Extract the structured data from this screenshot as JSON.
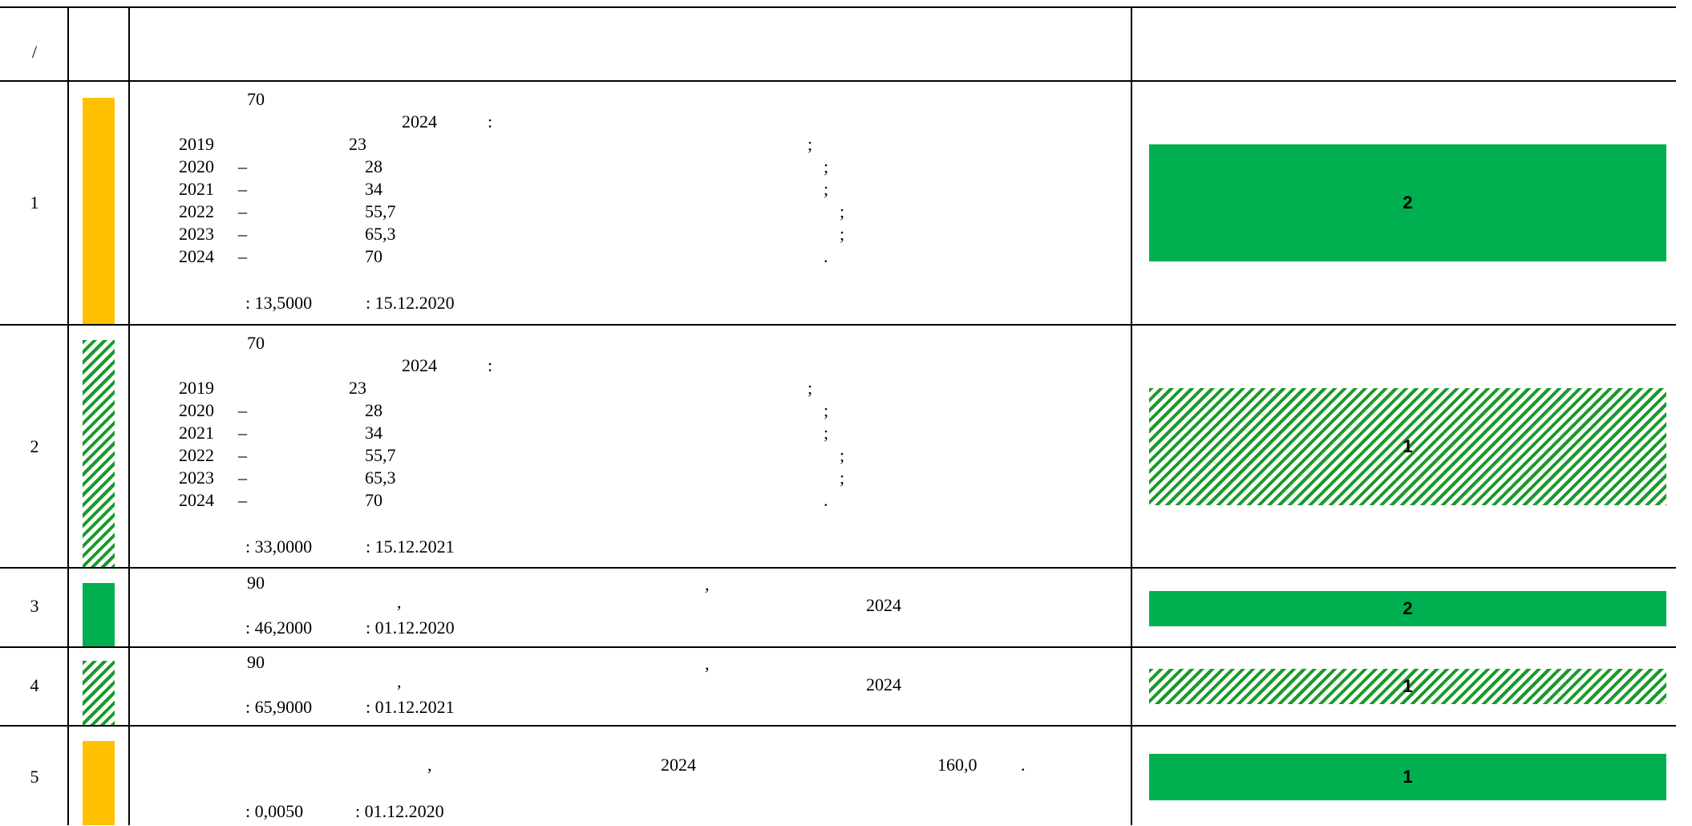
{
  "header": {
    "col_num": "/"
  },
  "rows": [
    {
      "num": "1",
      "status": "yellow",
      "lines": {
        "top": "70",
        "year_target": "2024",
        "colon": ":",
        "schedule": [
          {
            "year": "2019",
            "dash": "",
            "val": "23",
            "punct": ";"
          },
          {
            "year": "2020",
            "dash": "–",
            "val": "28",
            "punct": ";"
          },
          {
            "year": "2021",
            "dash": "–",
            "val": "34",
            "punct": ";"
          },
          {
            "year": "2022",
            "dash": "–",
            "val": "55,7",
            "punct": ";"
          },
          {
            "year": "2023",
            "dash": "–",
            "val": "65,3",
            "punct": ";"
          },
          {
            "year": "2024",
            "dash": "–",
            "val": "70",
            "punct": "."
          }
        ],
        "amount": ": 13,5000",
        "date": ": 15.12.2020"
      },
      "badge": {
        "label": "2",
        "style": "solid-green"
      }
    },
    {
      "num": "2",
      "status": "hatched",
      "lines": {
        "top": "70",
        "year_target": "2024",
        "colon": ":",
        "schedule": [
          {
            "year": "2019",
            "dash": "",
            "val": "23",
            "punct": ";"
          },
          {
            "year": "2020",
            "dash": "–",
            "val": "28",
            "punct": ";"
          },
          {
            "year": "2021",
            "dash": "–",
            "val": "34",
            "punct": ";"
          },
          {
            "year": "2022",
            "dash": "–",
            "val": "55,7",
            "punct": ";"
          },
          {
            "year": "2023",
            "dash": "–",
            "val": "65,3",
            "punct": ";"
          },
          {
            "year": "2024",
            "dash": "–",
            "val": "70",
            "punct": "."
          }
        ],
        "amount": ": 33,0000",
        "date": ": 15.12.2021"
      },
      "badge": {
        "label": "1",
        "style": "hatched"
      }
    },
    {
      "num": "3",
      "status": "green",
      "short": {
        "top": "90",
        "comma1": ",",
        "comma2": ",",
        "year": "2024",
        "amount": ": 46,2000",
        "date": ": 01.12.2020"
      },
      "badge": {
        "label": "2",
        "style": "solid-green"
      }
    },
    {
      "num": "4",
      "status": "hatched",
      "short": {
        "top": "90",
        "comma1": ",",
        "comma2": ",",
        "year": "2024",
        "amount": ": 65,9000",
        "date": ": 01.12.2021"
      },
      "badge": {
        "label": "1",
        "style": "hatched"
      }
    },
    {
      "num": "5",
      "status": "yellow",
      "row5": {
        "comma": ",",
        "year": "2024",
        "value": "160,0",
        "dot": ".",
        "amount": ": 0,0050",
        "date": ": 01.12.2020"
      },
      "badge": {
        "label": "1",
        "style": "solid-green"
      }
    }
  ],
  "colors": {
    "yellow": "#ffc000",
    "green": "#00b050",
    "hatch": "#1a9a2a"
  }
}
